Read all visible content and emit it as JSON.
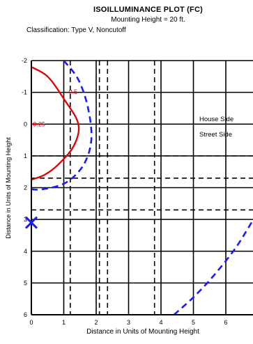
{
  "chart_data": {
    "type": "line",
    "title": "ISOILLUMINANCE PLOT (FC)",
    "subtitle": "Mounting Height = 20 ft.",
    "classification": "Classification: Type V, Noncutoff",
    "xlabel": "Distance in Units of Mounting Height",
    "ylabel": "Distance in Units of Mounting Height",
    "xlim": [
      0,
      7
    ],
    "ylim": [
      -2,
      6
    ],
    "y_inverted": true,
    "x_ticks": [
      "0",
      "1",
      "2",
      "3",
      "4",
      "5",
      "6"
    ],
    "y_ticks": [
      "-2",
      "-1",
      "0",
      "1",
      "2",
      "3",
      "4",
      "5",
      "6"
    ],
    "grid": true,
    "dashed_grid_x": [
      1.2,
      2.1,
      2.35,
      3.8
    ],
    "dashed_grid_y": [
      1.0,
      1.7,
      2.7
    ],
    "region_labels": {
      "house_side": "House Side",
      "street_side": "Street Side"
    },
    "luminaire_marker": {
      "x": 0,
      "y": 3.1,
      "color": "#1a1aff"
    },
    "series": [
      {
        "label": "0.5",
        "color": "#e00000",
        "style": "solid",
        "points": [
          [
            0,
            -1.8
          ],
          [
            0.5,
            -1.5
          ],
          [
            1.0,
            -0.8
          ],
          [
            1.45,
            0.0
          ],
          [
            1.3,
            0.7
          ],
          [
            0.8,
            1.3
          ],
          [
            0.4,
            1.6
          ],
          [
            0,
            1.75
          ]
        ]
      },
      {
        "label": "0.25",
        "color": "#e00000",
        "style": "solid",
        "points": [
          [
            0,
            0.0
          ],
          [
            0.22,
            0.0
          ]
        ]
      },
      {
        "label": "",
        "color": "#1a1aff",
        "style": "dashed",
        "points": [
          [
            1.0,
            -2.0
          ],
          [
            1.45,
            -1.4
          ],
          [
            1.75,
            -0.5
          ],
          [
            1.85,
            0.5
          ],
          [
            1.6,
            1.3
          ],
          [
            1.05,
            1.85
          ],
          [
            0.35,
            2.05
          ],
          [
            0,
            2.05
          ]
        ]
      },
      {
        "label": "",
        "color": "#1a1aff",
        "style": "dashed",
        "points": [
          [
            4.4,
            6.0
          ],
          [
            5.0,
            5.45
          ],
          [
            5.6,
            4.8
          ],
          [
            6.3,
            3.9
          ],
          [
            6.85,
            3.0
          ]
        ]
      }
    ]
  }
}
